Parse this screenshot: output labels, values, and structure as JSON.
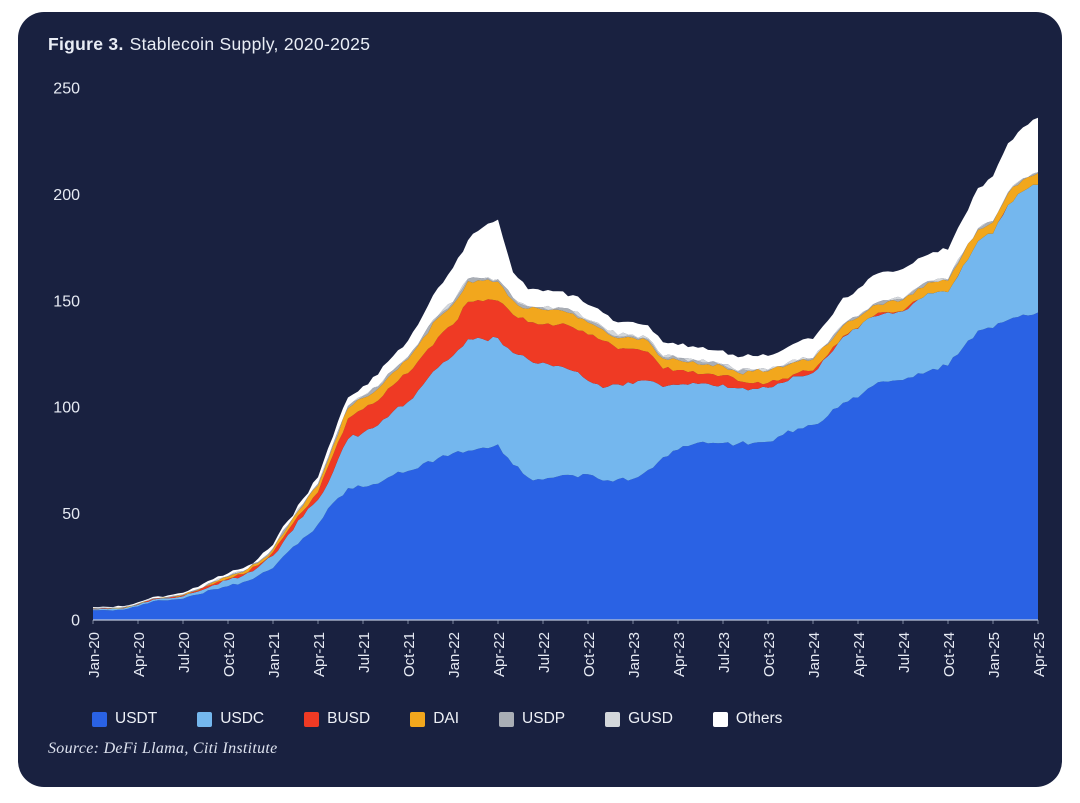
{
  "header": {
    "figure_label": "Figure 3.",
    "title_rest": "Stablecoin Supply, 2020-2025"
  },
  "source": "Source: DeFi Llama, Citi Institute",
  "colors": {
    "page_bg": "#ffffff",
    "card_bg": "#192140",
    "text": "#e9edf5",
    "axis_line": "#b9c3d9"
  },
  "chart_data": {
    "type": "area",
    "stacked": true,
    "title": "Stablecoin Supply, 2020-2025",
    "xlabel": "",
    "ylabel": "",
    "x_unit": "month",
    "x_start": "Jan-20",
    "x_end": "Apr-25",
    "x_ticks": [
      "Jan-20",
      "Apr-20",
      "Jul-20",
      "Oct-20",
      "Jan-21",
      "Apr-21",
      "Jul-21",
      "Oct-21",
      "Jan-22",
      "Apr-22",
      "Jul-22",
      "Oct-22",
      "Jan-23",
      "Apr-23",
      "Jul-23",
      "Oct-23",
      "Jan-24",
      "Apr-24",
      "Jul-24",
      "Oct-24",
      "Jan-25",
      "Apr-25"
    ],
    "x_tick_month_step": 3,
    "ylim": [
      0,
      250
    ],
    "y_ticks": [
      0,
      50,
      100,
      150,
      200,
      250
    ],
    "grid": false,
    "legend_position": "bottom",
    "series": [
      {
        "name": "USDT",
        "color": "#2a62e4",
        "values": [
          4.6,
          4.6,
          4.8,
          6.4,
          8.8,
          9.2,
          10,
          12,
          14.4,
          15.9,
          17.8,
          20.8,
          24.4,
          32,
          38.5,
          45,
          55,
          62,
          62.5,
          64,
          68,
          70,
          73.5,
          76,
          78.4,
          79.5,
          81,
          82.5,
          73,
          67,
          66,
          67.5,
          68,
          68.5,
          65.5,
          66.2,
          66.3,
          70.5,
          76.5,
          80,
          82.5,
          83,
          83.2,
          82.9,
          83.2,
          83.8,
          87,
          90,
          91.7,
          96,
          102,
          104.5,
          110,
          112,
          112.8,
          116,
          118,
          119.5,
          128,
          136,
          137.2,
          141,
          143.5,
          144.5
        ]
      },
      {
        "name": "USDC",
        "color": "#74b7ee",
        "values": [
          0.5,
          0.5,
          0.6,
          0.7,
          0.8,
          1,
          1.1,
          1.4,
          1.9,
          2.9,
          3,
          3.9,
          5.8,
          8,
          10,
          11.5,
          14.5,
          23,
          25.5,
          27.5,
          30,
          32.5,
          37,
          42.5,
          45.8,
          52.5,
          51,
          50,
          52.5,
          55.5,
          55,
          52,
          49,
          43.9,
          43.5,
          44.5,
          44.6,
          42,
          33,
          30.5,
          29,
          28,
          27.5,
          26,
          25.5,
          25.3,
          24.5,
          24.5,
          24.4,
          28,
          31,
          32.4,
          32.5,
          32.5,
          32.3,
          34.5,
          35.5,
          34.6,
          38.5,
          42,
          44.4,
          54,
          58,
          60
        ]
      },
      {
        "name": "BUSD",
        "color": "#ef3a24",
        "values": [
          0.2,
          0.2,
          0.2,
          0.2,
          0.2,
          0.2,
          0.4,
          0.4,
          0.5,
          0.6,
          0.7,
          1,
          1.7,
          2.2,
          2.7,
          3.5,
          8,
          9.7,
          11,
          11.6,
          12.3,
          13.5,
          14,
          14.4,
          14.6,
          17.5,
          17.8,
          17.5,
          18,
          17.5,
          17.9,
          19.3,
          20.5,
          21.7,
          22.3,
          16.6,
          16.6,
          13.5,
          8.5,
          7,
          5.5,
          4.8,
          4.3,
          3.4,
          2.6,
          2.3,
          2,
          1.7,
          1,
          0.7,
          0.4,
          0.2,
          0.1,
          0.1,
          0.1,
          0,
          0,
          0,
          0,
          0,
          0,
          0,
          0,
          0
        ]
      },
      {
        "name": "DAI",
        "color": "#f2a71d",
        "values": [
          0.1,
          0.1,
          0.1,
          0.1,
          0.1,
          0.1,
          0.2,
          0.4,
          0.9,
          0.9,
          1,
          1.1,
          1.3,
          1.8,
          2.5,
          3.2,
          4.2,
          4.8,
          5.3,
          5.6,
          6,
          6.5,
          8,
          9,
          9.5,
          9.8,
          9.6,
          9,
          6.8,
          6.3,
          6.9,
          7,
          6.5,
          5.7,
          5.2,
          5.1,
          5.1,
          5.2,
          4.9,
          4.7,
          4.6,
          4.4,
          4.3,
          3.9,
          5.5,
          5.5,
          5.3,
          5.3,
          5.3,
          4.9,
          4.9,
          5,
          5.2,
          5.1,
          5.2,
          5.3,
          5.3,
          5.3,
          5.4,
          5.4,
          5.3,
          5.4,
          5.4,
          5.4
        ]
      },
      {
        "name": "USDP",
        "color": "#a9aeb5",
        "values": [
          0.2,
          0.2,
          0.2,
          0.25,
          0.25,
          0.25,
          0.25,
          0.25,
          0.25,
          0.3,
          0.35,
          0.4,
          0.5,
          0.6,
          0.7,
          0.8,
          0.9,
          0.9,
          0.9,
          0.95,
          0.95,
          1,
          1,
          0.95,
          0.95,
          0.95,
          0.95,
          0.95,
          0.95,
          0.9,
          0.9,
          0.9,
          0.9,
          0.9,
          0.85,
          0.85,
          0.85,
          0.8,
          0.7,
          0.7,
          0.7,
          0.65,
          0.6,
          0.55,
          0.5,
          0.5,
          0.45,
          0.45,
          0.45,
          0.45,
          0.4,
          0.4,
          0.4,
          0.4,
          0.4,
          0.4,
          0.4,
          0.4,
          0.4,
          0.4,
          0.4,
          0.4,
          0.4,
          0.4
        ]
      },
      {
        "name": "GUSD",
        "color": "#d3d7db",
        "values": [
          0.1,
          0.1,
          0.1,
          0.1,
          0.1,
          0.1,
          0.1,
          0.1,
          0.1,
          0.1,
          0.1,
          0.1,
          0.1,
          0.1,
          0.1,
          0.1,
          0.15,
          0.15,
          0.15,
          0.15,
          0.2,
          0.2,
          0.2,
          0.2,
          0.2,
          0.2,
          0.2,
          0.2,
          0.2,
          0.25,
          0.3,
          0.3,
          0.3,
          0.4,
          0.5,
          0.6,
          0.6,
          0.5,
          0.4,
          0.35,
          0.3,
          0.3,
          0.3,
          0.25,
          0.25,
          0.2,
          0.2,
          0.2,
          0.2,
          0.2,
          0.2,
          0.2,
          0.2,
          0.2,
          0.2,
          0.2,
          0.2,
          0.2,
          0.2,
          0.2,
          0.2,
          0.2,
          0.2,
          0.2
        ]
      },
      {
        "name": "Others",
        "color": "#ffffff",
        "values": [
          0.4,
          0.45,
          0.5,
          0.55,
          0.6,
          0.7,
          0.8,
          0.95,
          1.1,
          1.2,
          1.35,
          1.5,
          1.5,
          2,
          2.5,
          3,
          3.5,
          4,
          4.5,
          5.5,
          6.5,
          7.5,
          9.5,
          13,
          16,
          18,
          24,
          28,
          12,
          8,
          7.5,
          7.5,
          7.5,
          7,
          6.5,
          6,
          6,
          6,
          6.5,
          6,
          6,
          5.8,
          6.5,
          6.5,
          6.5,
          6.5,
          7.5,
          8.5,
          9,
          10.5,
          12.5,
          13,
          13.5,
          13.5,
          14,
          13.5,
          13.5,
          14,
          16,
          19,
          21,
          23,
          24,
          25.5
        ]
      }
    ]
  }
}
